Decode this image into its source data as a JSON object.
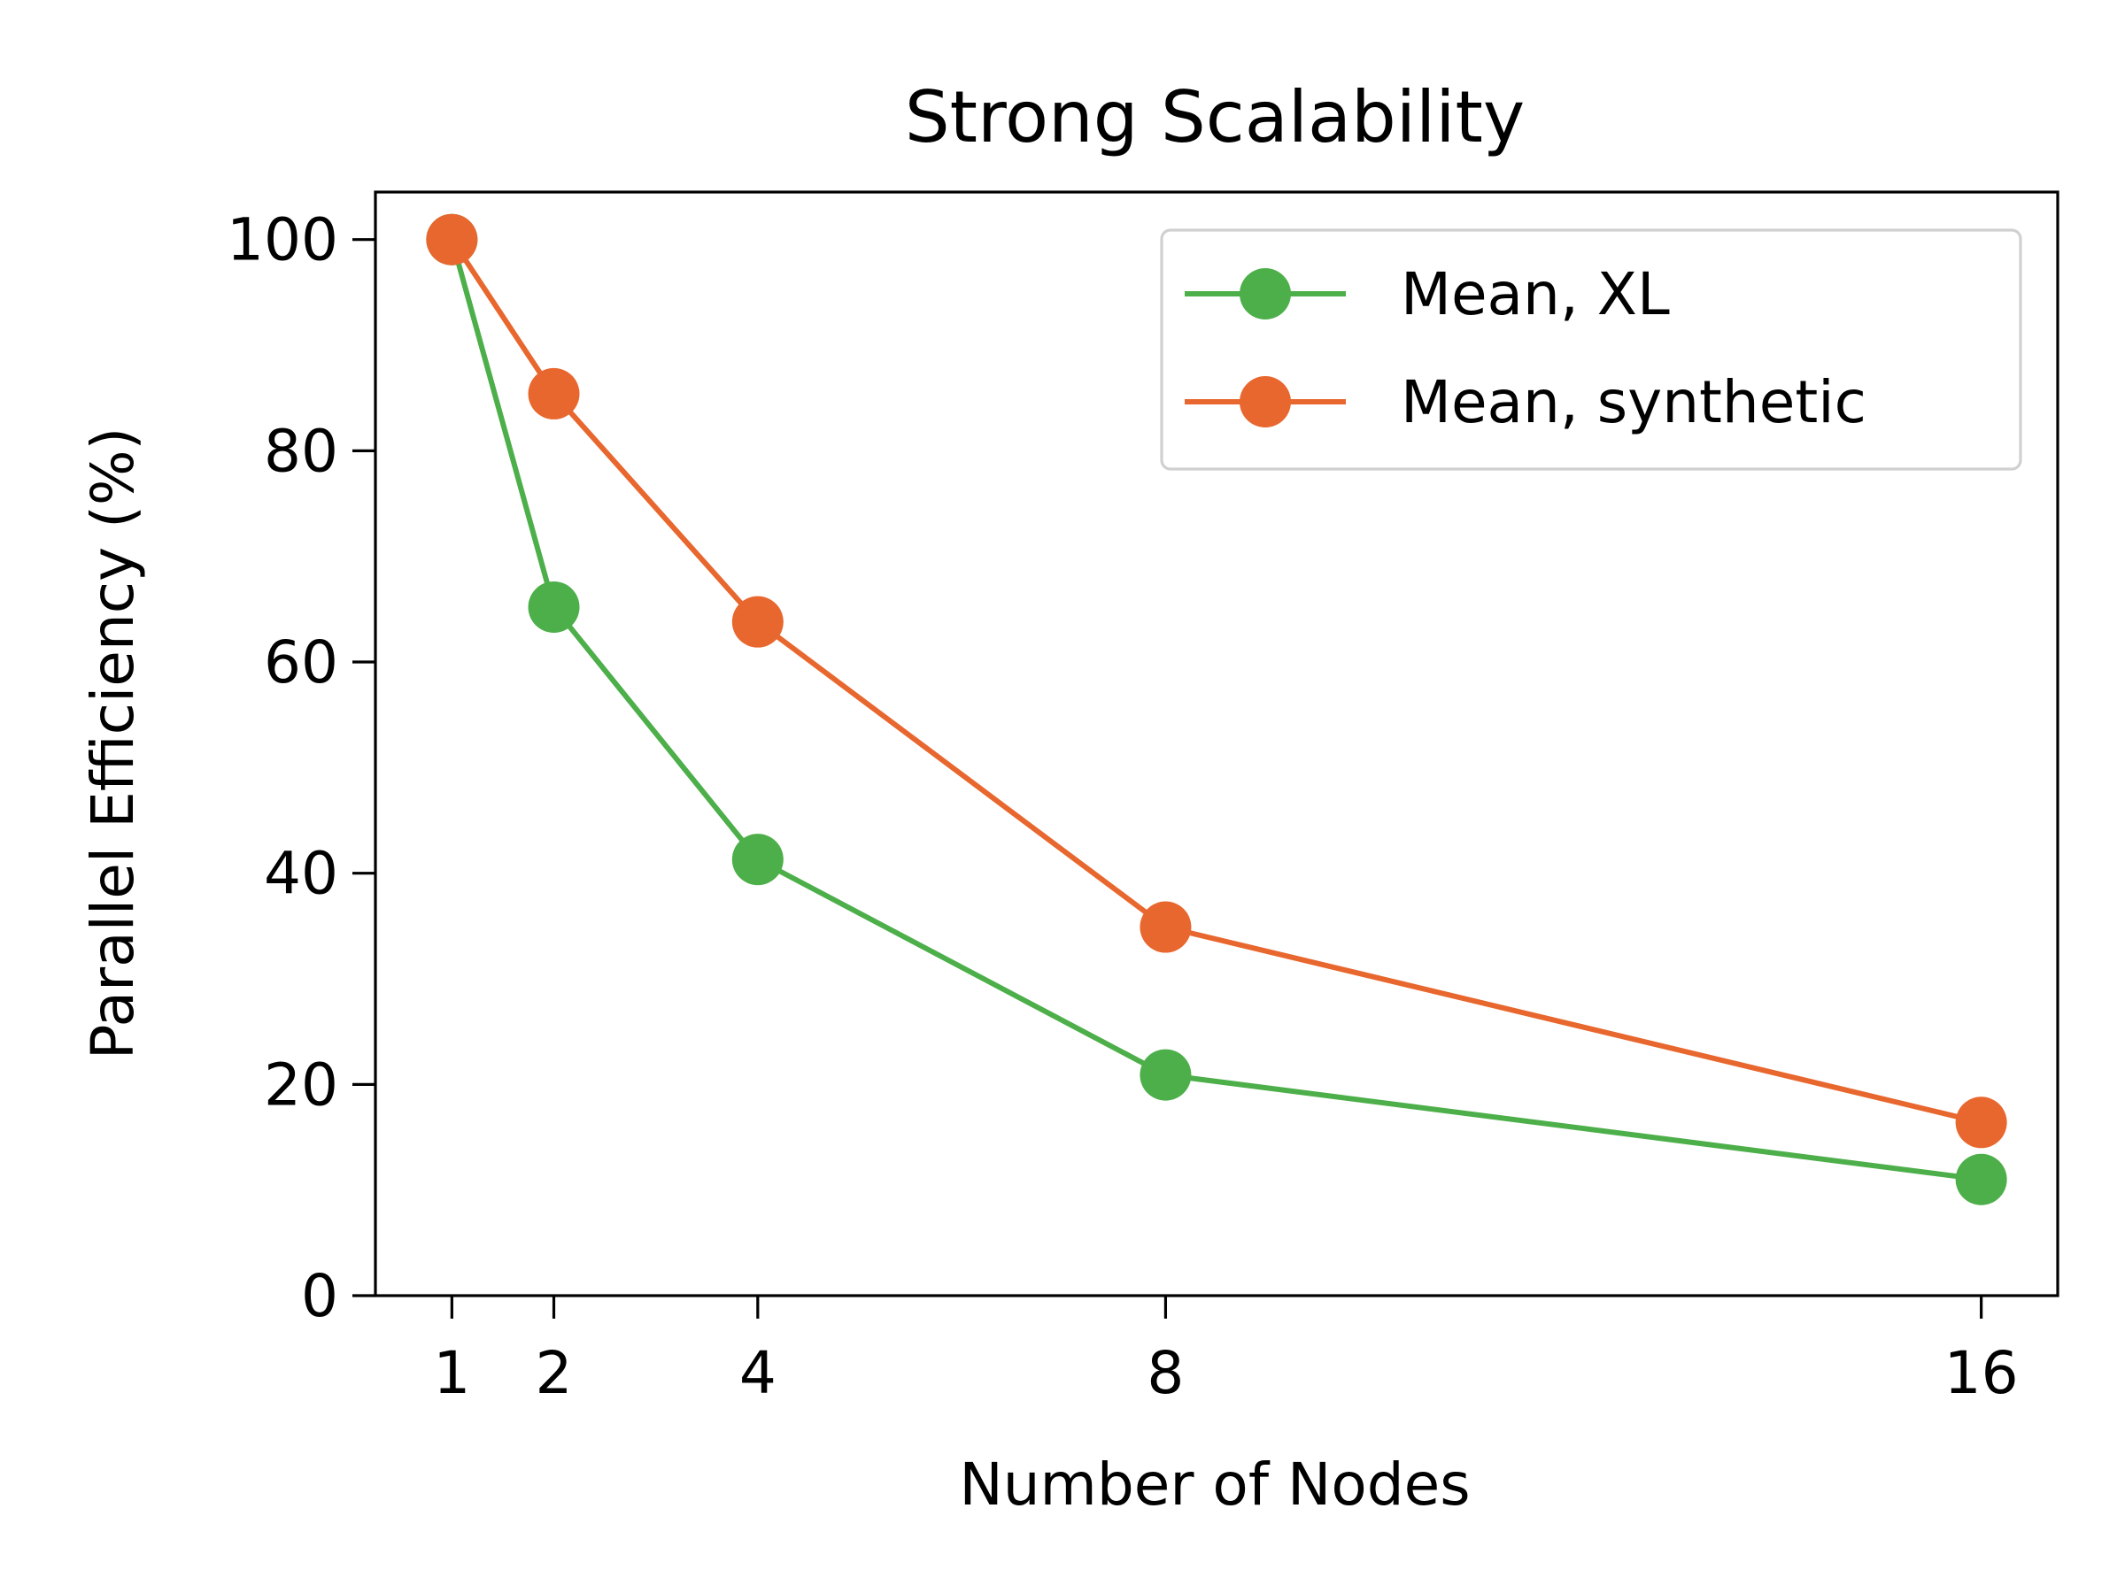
{
  "chart_data": {
    "type": "line",
    "title": "Strong Scalability",
    "xlabel": "Number of Nodes",
    "ylabel": "Parallel Efficiency (%)",
    "x": [
      1,
      2,
      4,
      8,
      16
    ],
    "x_ticks": [
      1,
      2,
      4,
      8,
      16
    ],
    "y_ticks": [
      0,
      20,
      40,
      60,
      80,
      100
    ],
    "xlim": [
      0.25,
      16.75
    ],
    "ylim": [
      0,
      104.5
    ],
    "grid": false,
    "legend_position": "top-right",
    "series": [
      {
        "name": "Mean, XL",
        "color": "#4daf4a",
        "values": [
          100,
          65.2,
          41.3,
          20.9,
          11.0
        ]
      },
      {
        "name": "Mean, synthetic",
        "color": "#e8672e",
        "values": [
          100,
          85.4,
          63.8,
          34.9,
          16.4
        ]
      }
    ]
  }
}
